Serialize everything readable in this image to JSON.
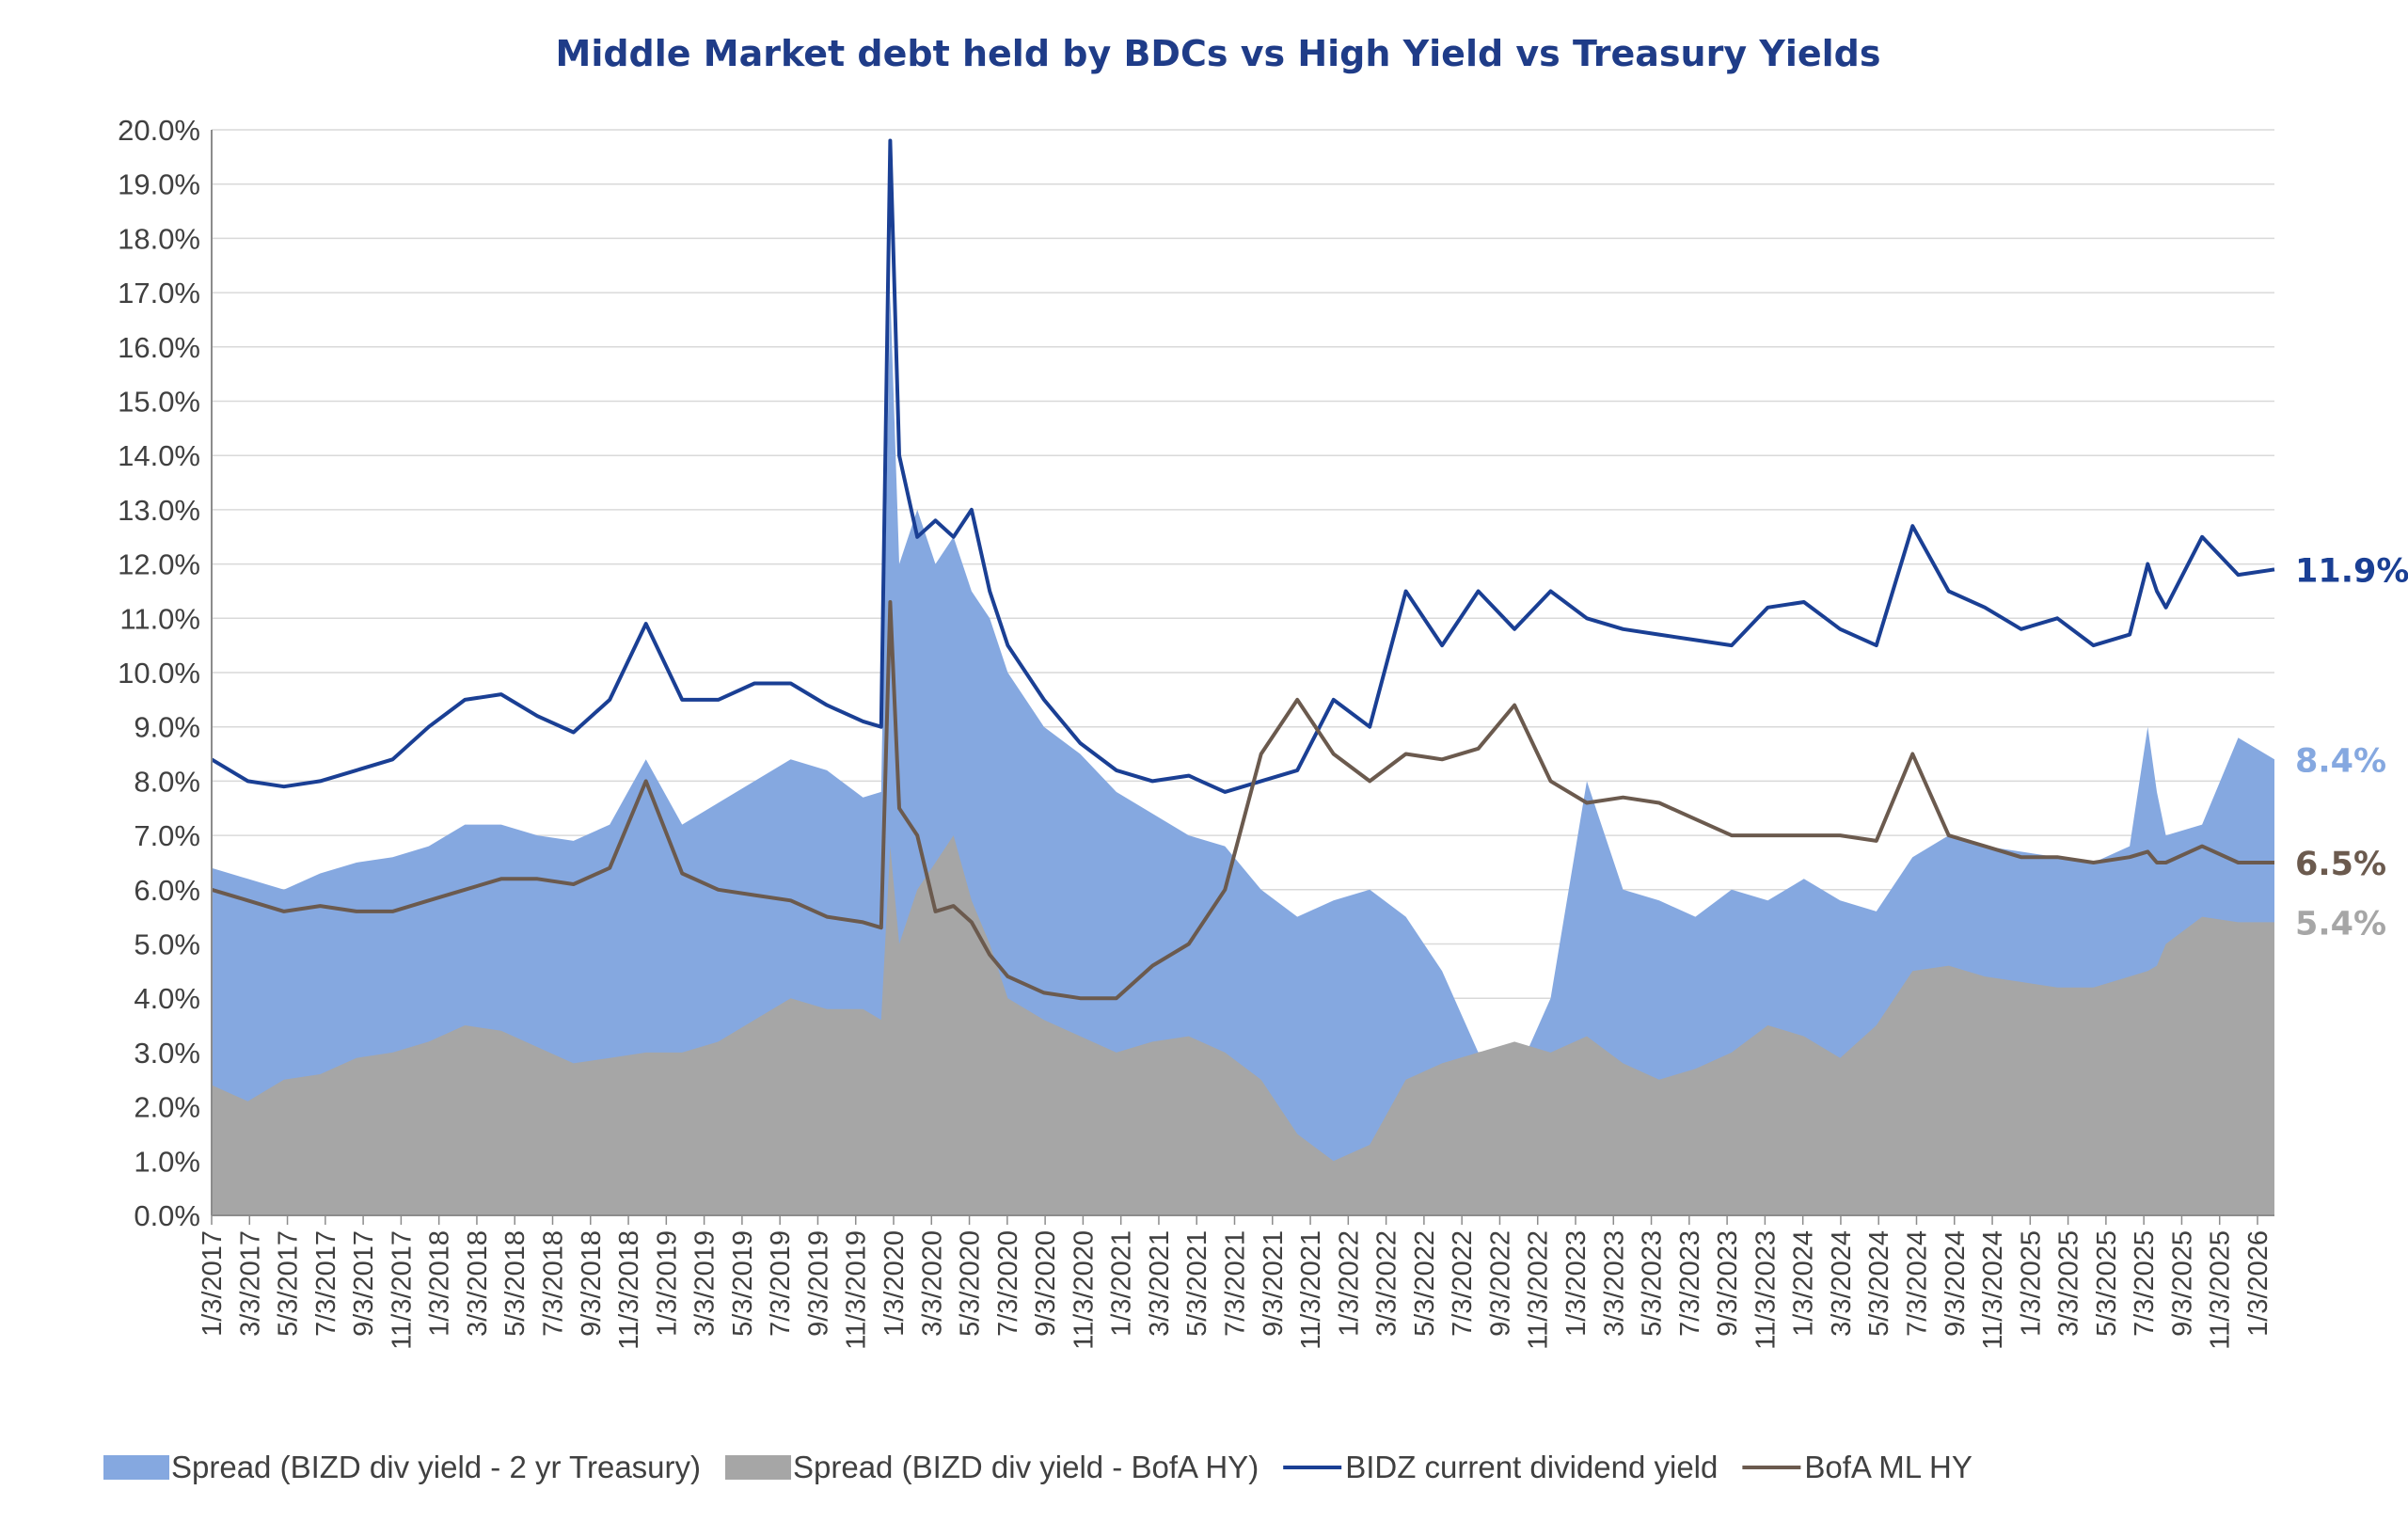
{
  "chart_data": {
    "type": "area",
    "title": "Middle Market debt held by BDCs vs High Yield vs Treasury Yields",
    "xlabel": "",
    "ylabel": "",
    "ylim": [
      0,
      20
    ],
    "y_ticks": [
      "0.0%",
      "1.0%",
      "2.0%",
      "3.0%",
      "4.0%",
      "5.0%",
      "6.0%",
      "7.0%",
      "8.0%",
      "9.0%",
      "10.0%",
      "11.0%",
      "12.0%",
      "13.0%",
      "14.0%",
      "15.0%",
      "16.0%",
      "17.0%",
      "18.0%",
      "19.0%",
      "20.0%"
    ],
    "x_ticks": [
      "1/3/2017",
      "3/3/2017",
      "5/3/2017",
      "7/3/2017",
      "9/3/2017",
      "11/3/2017",
      "1/3/2018",
      "3/3/2018",
      "5/3/2018",
      "7/3/2018",
      "9/3/2018",
      "11/3/2018",
      "1/3/2019",
      "3/3/2019",
      "5/3/2019",
      "7/3/2019",
      "9/3/2019",
      "11/3/2019",
      "1/3/2020",
      "3/3/2020",
      "5/3/2020",
      "7/3/2020",
      "9/3/2020",
      "11/3/2020",
      "1/3/2021",
      "3/3/2021",
      "5/3/2021",
      "7/3/2021",
      "9/3/2021",
      "11/3/2021",
      "1/3/2022",
      "3/3/2022",
      "5/3/2022",
      "7/3/2022",
      "9/3/2022",
      "11/3/2022",
      "1/3/2023",
      "3/3/2023",
      "5/3/2023",
      "7/3/2023",
      "9/3/2023",
      "11/3/2023",
      "1/3/2024",
      "3/3/2024",
      "5/3/2024",
      "7/3/2024",
      "9/3/2024",
      "11/3/2024",
      "1/3/2025",
      "3/3/2025",
      "5/3/2025",
      "7/3/2025",
      "9/3/2025",
      "11/3/2025",
      "1/3/2026"
    ],
    "x_index": [
      0,
      4,
      8,
      12,
      16,
      20,
      24,
      28,
      32,
      36,
      40,
      44,
      48,
      52,
      56,
      60,
      64,
      68,
      72,
      74,
      75,
      76,
      78,
      80,
      82,
      84,
      86,
      88,
      92,
      96,
      100,
      104,
      108,
      112,
      116,
      120,
      124,
      128,
      132,
      136,
      140,
      144,
      148,
      152,
      156,
      160,
      164,
      168,
      172,
      176,
      180,
      184,
      188,
      192,
      196,
      200,
      204,
      208,
      212,
      214,
      215,
      216,
      220,
      224,
      228
    ],
    "x_index_max": 228,
    "series": [
      {
        "name": "Spread (BIZD div yield - 2 yr Treasury)",
        "type": "area",
        "color": "#85a8e0",
        "values": [
          6.4,
          6.2,
          6.0,
          6.3,
          6.5,
          6.6,
          6.8,
          7.2,
          7.2,
          7.0,
          6.9,
          7.2,
          8.4,
          7.2,
          7.6,
          8.0,
          8.4,
          8.2,
          7.7,
          7.8,
          17.0,
          12.0,
          13.0,
          12.0,
          12.5,
          11.5,
          11.0,
          10.0,
          9.0,
          8.5,
          7.8,
          7.4,
          7.0,
          6.8,
          6.0,
          5.5,
          5.8,
          6.0,
          5.5,
          4.5,
          3.0,
          2.5,
          4.0,
          8.0,
          6.0,
          5.8,
          5.5,
          6.0,
          5.8,
          6.2,
          5.8,
          5.6,
          6.6,
          7.0,
          6.8,
          6.7,
          6.6,
          6.5,
          6.8,
          9.0,
          7.8,
          7.0,
          7.2,
          8.8,
          8.4
        ]
      },
      {
        "name": "Spread (BIZD div yield - BofA HY)",
        "type": "area",
        "color": "#a6a6a6",
        "values": [
          2.4,
          2.1,
          2.5,
          2.6,
          2.9,
          3.0,
          3.2,
          3.5,
          3.4,
          3.1,
          2.8,
          2.9,
          3.0,
          3.0,
          3.2,
          3.6,
          4.0,
          3.8,
          3.8,
          3.6,
          6.8,
          5.0,
          6.0,
          6.5,
          7.0,
          5.8,
          5.0,
          4.0,
          3.6,
          3.3,
          3.0,
          3.2,
          3.3,
          3.0,
          2.5,
          1.5,
          1.0,
          1.3,
          2.5,
          2.8,
          3.0,
          3.2,
          3.0,
          3.3,
          2.8,
          2.5,
          2.7,
          3.0,
          3.5,
          3.3,
          2.9,
          3.5,
          4.5,
          4.6,
          4.4,
          4.3,
          4.2,
          4.2,
          4.4,
          4.5,
          4.6,
          5.0,
          5.5,
          5.4,
          5.4
        ]
      },
      {
        "name": "BIDZ current dividend yield",
        "type": "line",
        "color": "#1a3f94",
        "values": [
          8.4,
          8.0,
          7.9,
          8.0,
          8.2,
          8.4,
          9.0,
          9.5,
          9.6,
          9.2,
          8.9,
          9.5,
          10.9,
          9.5,
          9.5,
          9.8,
          9.8,
          9.4,
          9.1,
          9.0,
          19.8,
          14.0,
          12.5,
          12.8,
          12.5,
          13.0,
          11.5,
          10.5,
          9.5,
          8.7,
          8.2,
          8.0,
          8.1,
          7.8,
          8.0,
          8.2,
          9.5,
          9.0,
          11.5,
          10.5,
          11.5,
          10.8,
          11.5,
          11.0,
          10.8,
          10.7,
          10.6,
          10.5,
          11.2,
          11.3,
          10.8,
          10.5,
          12.7,
          11.5,
          11.2,
          10.8,
          11.0,
          10.5,
          10.7,
          12.0,
          11.5,
          11.2,
          12.5,
          11.8,
          11.9
        ]
      },
      {
        "name": "BofA ML HY",
        "type": "line",
        "color": "#6b5a4e",
        "values": [
          6.0,
          5.8,
          5.6,
          5.7,
          5.6,
          5.6,
          5.8,
          6.0,
          6.2,
          6.2,
          6.1,
          6.4,
          8.0,
          6.3,
          6.0,
          5.9,
          5.8,
          5.5,
          5.4,
          5.3,
          11.3,
          7.5,
          7.0,
          5.6,
          5.7,
          5.4,
          4.8,
          4.4,
          4.1,
          4.0,
          4.0,
          4.6,
          5.0,
          6.0,
          8.5,
          9.5,
          8.5,
          8.0,
          8.5,
          8.4,
          8.6,
          9.4,
          8.0,
          7.6,
          7.7,
          7.6,
          7.3,
          7.0,
          7.0,
          7.0,
          7.0,
          6.9,
          8.5,
          7.0,
          6.8,
          6.6,
          6.6,
          6.5,
          6.6,
          6.7,
          6.5,
          6.5,
          6.8,
          6.5,
          6.5
        ]
      }
    ],
    "end_labels": [
      {
        "text": "11.9%",
        "value": 11.9,
        "color": "#1a3f94"
      },
      {
        "text": "8.4%",
        "value": 8.4,
        "color": "#85a8e0"
      },
      {
        "text": "6.5%",
        "value": 6.5,
        "color": "#6b5a4e"
      },
      {
        "text": "5.4%",
        "value": 5.4,
        "color": "#a6a6a6"
      }
    ],
    "grid": true,
    "legend": "bottom",
    "legend_entries": [
      {
        "text": "Spread (BIZD div yield - 2 yr Treasury)",
        "kind": "box",
        "color": "#85a8e0"
      },
      {
        "text": "Spread (BIZD div yield - BofA HY)",
        "kind": "box",
        "color": "#a6a6a6"
      },
      {
        "text": "BIDZ current dividend yield",
        "kind": "line",
        "color": "#1a3f94"
      },
      {
        "text": "BofA ML HY",
        "kind": "line",
        "color": "#6b5a4e"
      }
    ]
  }
}
